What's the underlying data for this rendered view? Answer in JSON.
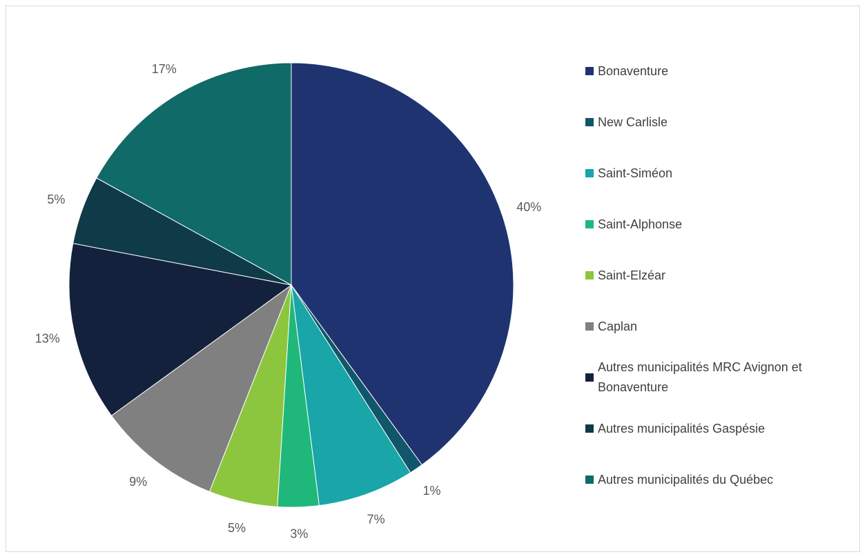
{
  "chart_data": {
    "type": "pie",
    "categories": [
      "Bonaventure",
      "New Carlisle",
      "Saint-Siméon",
      "Saint-Alphonse",
      "Saint-Elzéar",
      "Caplan",
      "Autres municipalités MRC Avignon et Bonaventure",
      "Autres municipalités Gaspésie",
      "Autres municipalités du Québec"
    ],
    "values": [
      40,
      1,
      7,
      3,
      5,
      9,
      13,
      5,
      17
    ],
    "value_labels": [
      "40%",
      "1%",
      "7%",
      "3%",
      "5%",
      "9%",
      "13%",
      "5%",
      "17%"
    ],
    "colors": [
      "#1f3370",
      "#11566a",
      "#1aa5a8",
      "#20b87a",
      "#8cc63f",
      "#808080",
      "#14213d",
      "#0f3a48",
      "#0f6a68"
    ],
    "legend": "right"
  }
}
